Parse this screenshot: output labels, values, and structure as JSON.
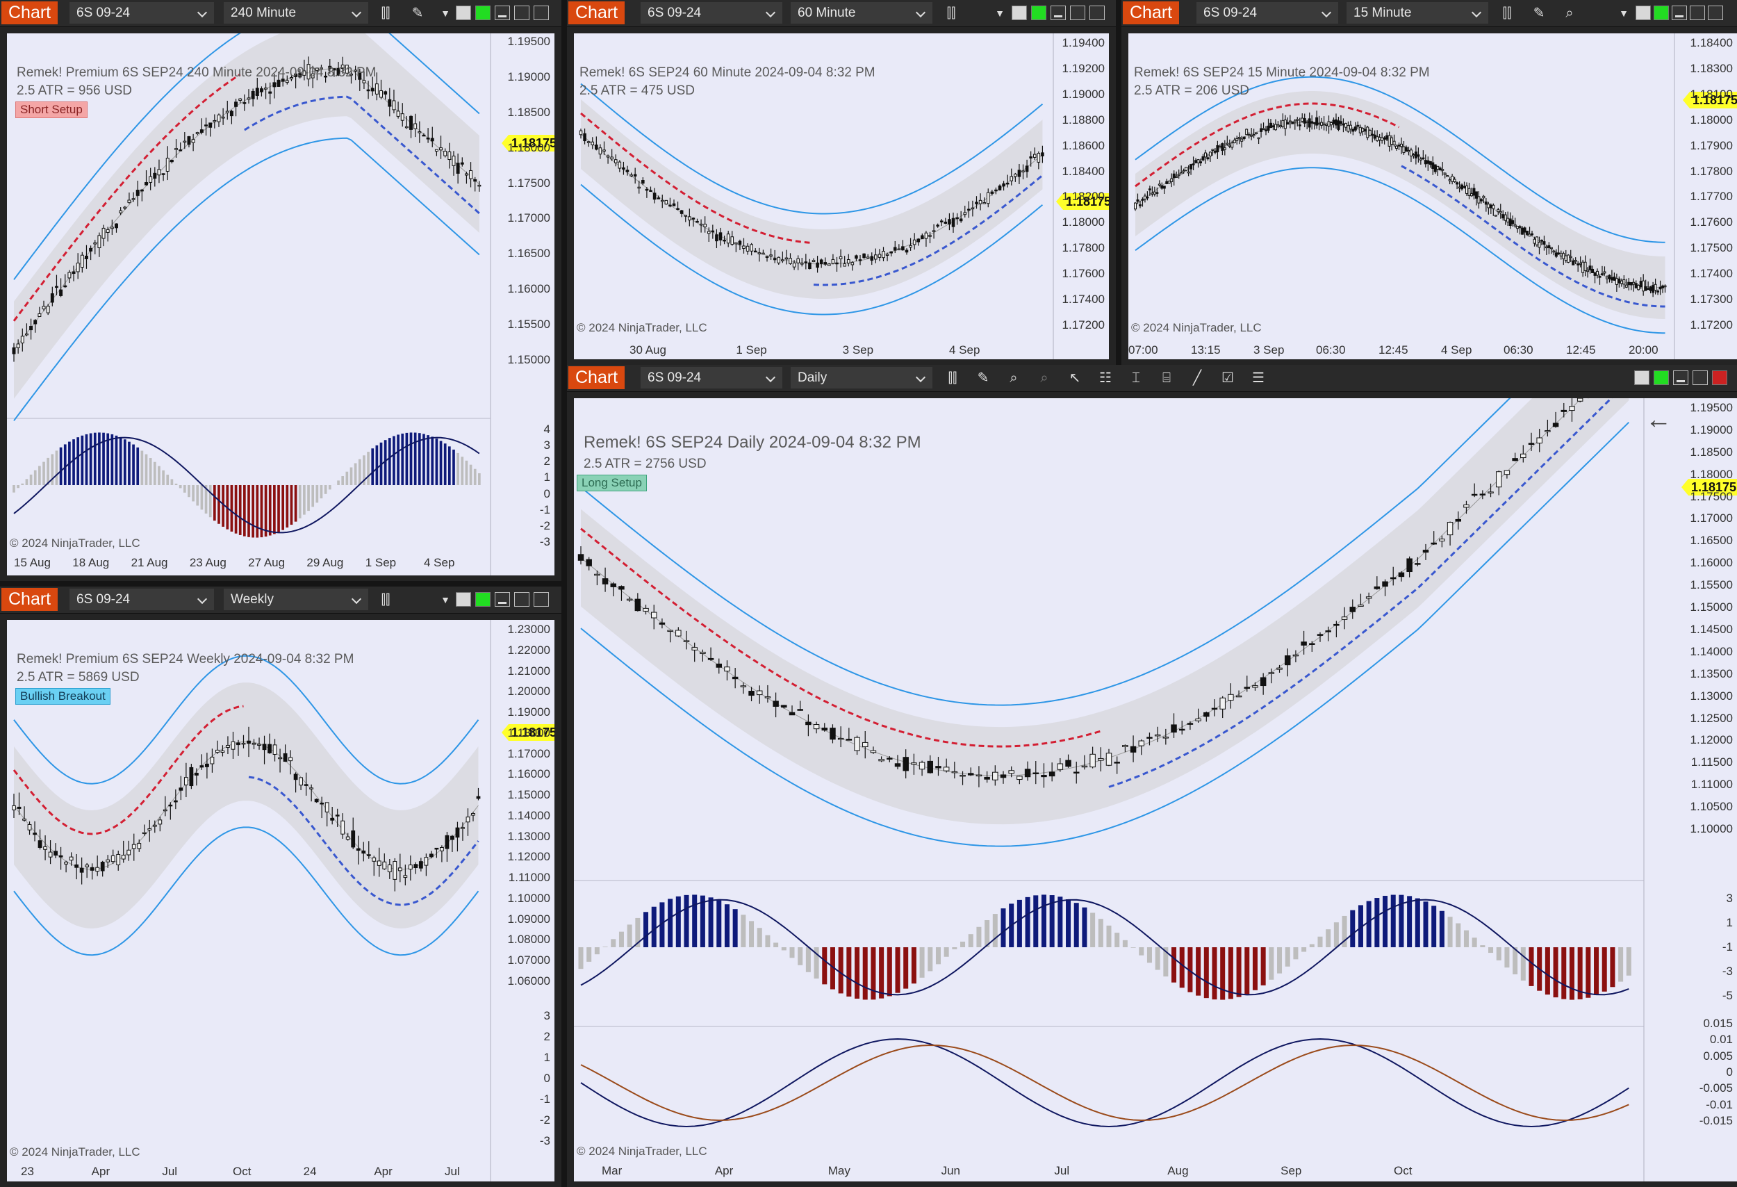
{
  "theme": {
    "chart_btn": "#d9480f",
    "background": "#e9eaf8",
    "band_fill": "#d9d9df",
    "band_line": "#2e96e6",
    "bull_hist": "#0e1a7a",
    "bear_hist": "#8b1010",
    "neutral_hist": "#bdbdbd",
    "trend_red": "#d31f33",
    "trend_blue": "#3958cf",
    "trend_yellow": "#ffff2a",
    "price_tag": "#ffff2a"
  },
  "panels": [
    {
      "id": "p240",
      "button": "Chart",
      "instrument": "6S 09-24",
      "interval": "240 Minute",
      "title": "Remek!  Premium  6S SEP24  240 Minute  2024-09-04 8:32 PM",
      "atr": "2.5 ATR = 956 USD",
      "tag": "Short Setup",
      "copyright": "© 2024 NinjaTrader, LLC",
      "last_price": "1.18175",
      "y_ticks": [
        "1.19500",
        "1.19000",
        "1.18500",
        "1.18000",
        "1.17500",
        "1.17000",
        "1.16500",
        "1.16000",
        "1.15500",
        "1.15000"
      ],
      "osc_ticks": [
        "4",
        "3",
        "2",
        "1",
        "0",
        "-1",
        "-2",
        "-3"
      ],
      "x_ticks": [
        "15 Aug",
        "18 Aug",
        "21 Aug",
        "23 Aug",
        "27 Aug",
        "29 Aug",
        "1 Sep",
        "4 Sep"
      ]
    },
    {
      "id": "p60",
      "button": "Chart",
      "instrument": "6S 09-24",
      "interval": "60 Minute",
      "title": "Remek!  6S SEP24  60 Minute  2024-09-04 8:32 PM",
      "atr": "2.5 ATR = 475 USD",
      "copyright": "© 2024 NinjaTrader, LLC",
      "last_price": "1.18175",
      "y_ticks": [
        "1.19400",
        "1.19200",
        "1.19000",
        "1.18800",
        "1.18600",
        "1.18400",
        "1.18200",
        "1.18000",
        "1.17800",
        "1.17600",
        "1.17400",
        "1.17200"
      ],
      "x_ticks": [
        "30 Aug",
        "1 Sep",
        "3 Sep",
        "4 Sep"
      ]
    },
    {
      "id": "p15",
      "button": "Chart",
      "instrument": "6S 09-24",
      "interval": "15 Minute",
      "title": "Remek!  6S SEP24  15 Minute  2024-09-04 8:32 PM",
      "atr": "2.5 ATR = 206 USD",
      "copyright": "© 2024 NinjaTrader, LLC",
      "last_price": "1.18175",
      "y_ticks": [
        "1.18400",
        "1.18300",
        "1.18100",
        "1.18000",
        "1.17900",
        "1.17800",
        "1.17700",
        "1.17600",
        "1.17500",
        "1.17400",
        "1.17300",
        "1.17200"
      ],
      "x_ticks": [
        "07:00",
        "13:15",
        "3 Sep",
        "06:30",
        "12:45",
        "4 Sep",
        "06:30",
        "12:45",
        "20:00"
      ]
    },
    {
      "id": "pweekly",
      "button": "Chart",
      "instrument": "6S 09-24",
      "interval": "Weekly",
      "title": "Remek!  Premium  6S SEP24  Weekly  2024-09-04 8:32 PM",
      "atr": "2.5 ATR = 5869 USD",
      "tag": "Bullish Breakout",
      "copyright": "© 2024 NinjaTrader, LLC",
      "last_price": "1.18175",
      "y_ticks": [
        "1.23000",
        "1.22000",
        "1.21000",
        "1.20000",
        "1.19000",
        "1.18000",
        "1.17000",
        "1.16000",
        "1.15000",
        "1.14000",
        "1.13000",
        "1.12000",
        "1.11000",
        "1.10000",
        "1.09000",
        "1.08000",
        "1.07000",
        "1.06000"
      ],
      "osc_ticks": [
        "3",
        "2",
        "1",
        "0",
        "-1",
        "-2",
        "-3"
      ],
      "x_ticks": [
        "23",
        "Apr",
        "Jul",
        "Oct",
        "24",
        "Apr",
        "Jul"
      ]
    },
    {
      "id": "pdaily",
      "button": "Chart",
      "instrument": "6S 09-24",
      "interval": "Daily",
      "title": "Remek!  6S SEP24  Daily  2024-09-04 8:32 PM",
      "atr": "2.5 ATR = 2756 USD",
      "tag": "Long Setup",
      "copyright": "© 2024 NinjaTrader, LLC",
      "last_price": "1.18175",
      "y_ticks": [
        "1.19500",
        "1.19000",
        "1.18500",
        "1.18000",
        "1.17500",
        "1.17000",
        "1.16500",
        "1.16000",
        "1.15500",
        "1.15000",
        "1.14500",
        "1.14000",
        "1.13500",
        "1.13000",
        "1.12500",
        "1.12000",
        "1.11500",
        "1.11000",
        "1.10500",
        "1.10000"
      ],
      "osc_ticks": [
        "3",
        "1",
        "-1",
        "-3",
        "-5"
      ],
      "osc2_ticks": [
        "0.015",
        "0.01",
        "0.005",
        "0",
        "-0.005",
        "-0.01",
        "-0.015"
      ],
      "x_ticks": [
        "Mar",
        "Apr",
        "May",
        "Jun",
        "Jul",
        "Aug",
        "Sep",
        "Oct"
      ]
    }
  ]
}
